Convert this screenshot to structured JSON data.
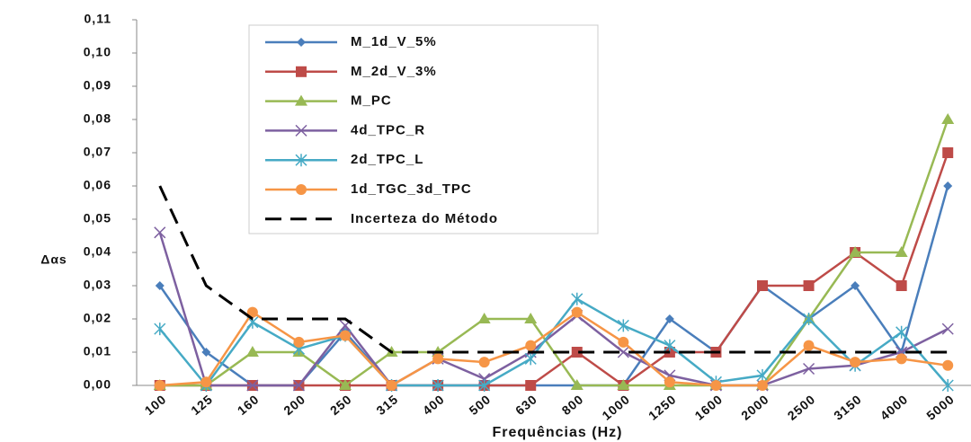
{
  "chart_data": {
    "type": "line",
    "y_label": "Δαs",
    "x_label": "Frequências (Hz)",
    "categories": [
      "100",
      "125",
      "160",
      "200",
      "250",
      "315",
      "400",
      "500",
      "630",
      "800",
      "1000",
      "1250",
      "1600",
      "2000",
      "2500",
      "3150",
      "4000",
      "5000"
    ],
    "ylim": [
      0,
      0.11
    ],
    "yticks": [
      {
        "value": 0,
        "label": "0,00"
      },
      {
        "value": 0.01,
        "label": "0,01"
      },
      {
        "value": 0.02,
        "label": "0,02"
      },
      {
        "value": 0.03,
        "label": "0,03"
      },
      {
        "value": 0.04,
        "label": "0,04"
      },
      {
        "value": 0.05,
        "label": "0,05"
      },
      {
        "value": 0.06,
        "label": "0,06"
      },
      {
        "value": 0.07,
        "label": "0,07"
      },
      {
        "value": 0.08,
        "label": "0,08"
      },
      {
        "value": 0.09,
        "label": "0,09"
      },
      {
        "value": 0.1,
        "label": "0,10"
      },
      {
        "value": 0.11,
        "label": "0,11"
      }
    ],
    "grid": false,
    "series": [
      {
        "name": "M_1d_V_5%",
        "color": "#4a7ebb",
        "marker": "diamond",
        "values": [
          0.03,
          0.01,
          0,
          0,
          0.016,
          0,
          0,
          0,
          0,
          0,
          0,
          0.02,
          0.01,
          0.03,
          0.02,
          0.03,
          0.01,
          0.06
        ]
      },
      {
        "name": "M_2d_V_3%",
        "color": "#be4b48",
        "marker": "square",
        "values": [
          0,
          0,
          0,
          0,
          0,
          0,
          0,
          0,
          0,
          0.01,
          0,
          0.01,
          0.01,
          0.03,
          0.03,
          0.04,
          0.03,
          0.07
        ]
      },
      {
        "name": "M_PC",
        "color": "#98b954",
        "marker": "triangle",
        "values": [
          0,
          0,
          0.01,
          0.01,
          0,
          0.01,
          0.01,
          0.02,
          0.02,
          0,
          0,
          0,
          0,
          0,
          0.02,
          0.04,
          0.04,
          0.08
        ]
      },
      {
        "name": "4d_TPC_R",
        "color": "#7d60a0",
        "marker": "x",
        "values": [
          0.046,
          0,
          0,
          0,
          0.018,
          0,
          0.008,
          0.002,
          0.01,
          0.021,
          0.01,
          0.003,
          0,
          0,
          0.005,
          0.006,
          0.01,
          0.017
        ]
      },
      {
        "name": "2d_TPC_L",
        "color": "#46aac5",
        "marker": "asterisk",
        "values": [
          0.017,
          0,
          0.019,
          0.011,
          0.015,
          0,
          0,
          0,
          0.008,
          0.026,
          0.018,
          0.012,
          0.001,
          0.003,
          0.02,
          0.006,
          0.016,
          0
        ]
      },
      {
        "name": "1d_TGC_3d_TPC",
        "color": "#f69546",
        "marker": "circle",
        "values": [
          0,
          0.001,
          0.022,
          0.013,
          0.015,
          0,
          0.008,
          0.007,
          0.012,
          0.022,
          0.013,
          0.001,
          0,
          0,
          0.012,
          0.007,
          0.008,
          0.006
        ]
      },
      {
        "name": "Incerteza do Método",
        "color": "#000000",
        "marker": "none",
        "dash": true,
        "values": [
          0.06,
          0.03,
          0.02,
          0.02,
          0.02,
          0.01,
          0.01,
          0.01,
          0.01,
          0.01,
          0.01,
          0.01,
          0.01,
          0.01,
          0.01,
          0.01,
          0.01,
          0.01
        ]
      }
    ]
  }
}
